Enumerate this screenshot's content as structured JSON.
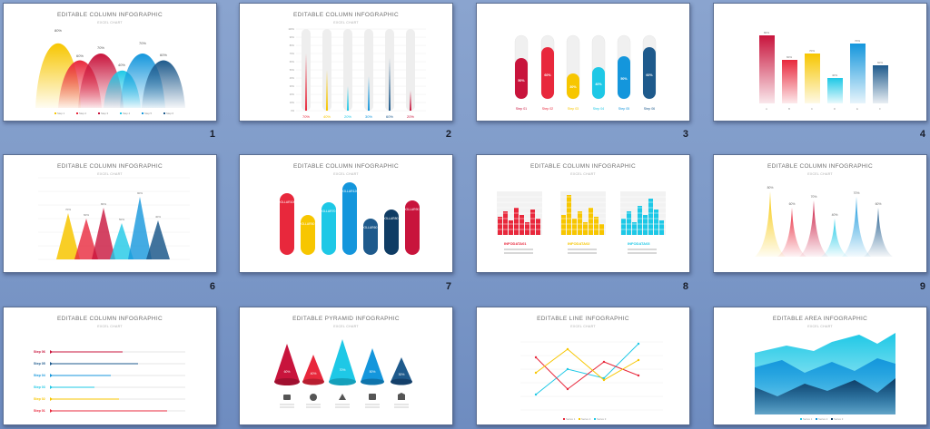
{
  "slides": [
    {
      "number": "1",
      "title": "EDITABLE COLUMN INFOGRAPHIC",
      "subtitle": "EXCEL CHART",
      "labels": [
        "80%",
        "60%",
        "70%",
        "40%",
        "70%",
        "60%"
      ],
      "legend": [
        "Step 1",
        "Step 2",
        "Step 3",
        "Step 4",
        "Step 5",
        "Step 6"
      ]
    },
    {
      "number": "2",
      "title": "EDITABLE COLUMN INFOGRAPHIC",
      "subtitle": "EXCEL CHART",
      "labels": [
        "70%",
        "40%",
        "20%",
        "30%",
        "60%",
        "20%"
      ],
      "ticks": [
        "100%",
        "90%",
        "80%",
        "70%",
        "60%",
        "50%",
        "40%",
        "30%",
        "20%",
        "10%",
        "0%"
      ]
    },
    {
      "number": "3",
      "title": "",
      "subtitle": "",
      "labels": [
        "50%",
        "60%",
        "30%",
        "40%",
        "50%",
        "60%"
      ],
      "legend": [
        "Step 01",
        "Step 02",
        "Step 03",
        "Step 04",
        "Step 05",
        "Step 06"
      ]
    },
    {
      "number": "4",
      "title": "",
      "subtitle": "",
      "labels": [
        "80%",
        "60%",
        "70%",
        "40%",
        "70%",
        "60%"
      ],
      "legend": [
        "A",
        "B",
        "C",
        "D",
        "E",
        "F"
      ]
    },
    {
      "number": "6",
      "title": "EDITABLE COLUMN INFOGRAPHIC",
      "subtitle": "EXCEL CHART",
      "labels": [
        "70%",
        "60%",
        "80%",
        "50%",
        "90%",
        "40%"
      ]
    },
    {
      "number": "7",
      "title": "EDITABLE COLUMN INFOGRAPHIC",
      "subtitle": "EXCEL CHART",
      "labels": [
        "DOLLAR100",
        "DOLLAR50",
        "DOLLAR70",
        "DOLLAR120",
        "DOLLAR60",
        "DOLLAR80",
        "DOLLAR90"
      ]
    },
    {
      "number": "8",
      "title": "EDITABLE COLUMN INFOGRAPHIC",
      "subtitle": "EXCEL CHART",
      "labels": [
        "INFODATA01",
        "INFODATA02",
        "INFODATA03"
      ]
    },
    {
      "number": "9",
      "title": "EDITABLE COLUMN INFOGRAPHIC",
      "subtitle": "EXCEL CHART",
      "labels": [
        "80%",
        "60%",
        "70%",
        "40%",
        "70%",
        "60%"
      ]
    },
    {
      "number": "",
      "title": "EDITABLE COLUMN INFOGRAPHIC",
      "subtitle": "EXCEL CHART",
      "labels": [
        "Step 06",
        "Step 05",
        "Step 04",
        "Step 03",
        "Step 02",
        "Step 01"
      ]
    },
    {
      "number": "",
      "title": "EDITABLE PYRAMID INFOGRAPHIC",
      "subtitle": "EXCEL CHART",
      "labels": [
        "60%",
        "40%",
        "70%",
        "50%",
        "30%"
      ]
    },
    {
      "number": "",
      "title": "EDITABLE LINE INFOGRAPHIC",
      "subtitle": "EXCEL CHART",
      "labels": [
        "Series 1",
        "Series 2",
        "Series 3"
      ]
    },
    {
      "number": "",
      "title": "EDITABLE AREA INFOGRAPHIC",
      "subtitle": "EXCEL CHART",
      "labels": [
        "Series 1",
        "Series 2",
        "Series 3"
      ]
    }
  ],
  "colors": {
    "yellow": "#f7c600",
    "red": "#e8283c",
    "crimson": "#c8143c",
    "cyan": "#1ec8e6",
    "blue": "#1496dc",
    "navy": "#1e5a8c",
    "dark_navy": "#0f3c64"
  }
}
